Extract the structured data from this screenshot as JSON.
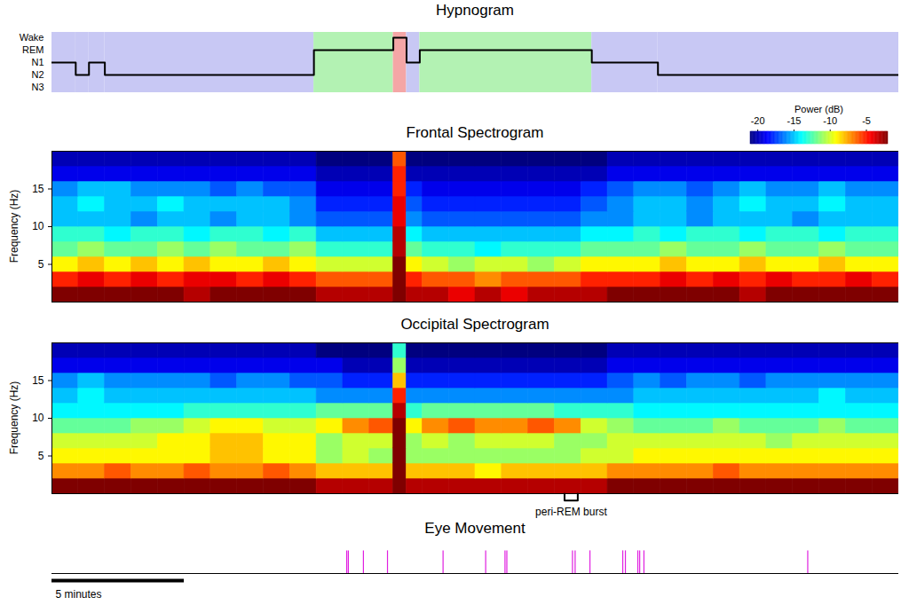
{
  "chart_data": [
    {
      "type": "step",
      "title": "Hypnogram",
      "categories": [
        "Wake",
        "REM",
        "N1",
        "N2",
        "N3"
      ],
      "segments": [
        {
          "stage": "N1",
          "start": 0,
          "end": 0.9,
          "color": "#c8c8f4"
        },
        {
          "stage": "N2",
          "start": 0.9,
          "end": 1.4,
          "color": "#c8c8f4"
        },
        {
          "stage": "N1",
          "start": 1.4,
          "end": 2.0,
          "color": "#c8c8f4"
        },
        {
          "stage": "N2",
          "start": 2.0,
          "end": 9.9,
          "color": "#c8c8f4"
        },
        {
          "stage": "REM",
          "start": 9.9,
          "end": 12.9,
          "color": "#b3f2b3"
        },
        {
          "stage": "Wake",
          "start": 12.9,
          "end": 13.4,
          "color": "#f4a6a6"
        },
        {
          "stage": "N1",
          "start": 13.4,
          "end": 13.9,
          "color": "#c8c8f4"
        },
        {
          "stage": "REM",
          "start": 13.9,
          "end": 20.4,
          "color": "#b3f2b3"
        },
        {
          "stage": "N1",
          "start": 20.4,
          "end": 22.9,
          "color": "#c8c8f4"
        },
        {
          "stage": "N2",
          "start": 22.9,
          "end": 32,
          "color": "#c8c8f4"
        }
      ],
      "color": "#000000",
      "xlim": [
        0,
        32
      ],
      "tick_labels": "y"
    },
    {
      "type": "heatmap",
      "title": "Frontal Spectrogram",
      "y_label": "Frequency (Hz)",
      "xlim": [
        0,
        32
      ],
      "ylim": [
        0,
        20
      ],
      "yticks": [
        5,
        10,
        15
      ],
      "tick_labels": "y",
      "colorbar": {
        "label": "Power (dB)",
        "range": [
          -21,
          -2
        ],
        "ticks": [
          -20,
          -15,
          -10,
          -5
        ]
      },
      "time_edges": [
        0,
        1,
        2,
        3,
        4,
        5,
        6,
        7,
        8,
        9,
        10,
        11,
        12,
        12.9,
        13.4,
        14,
        15,
        16,
        17,
        18,
        19,
        20,
        21,
        22,
        23,
        24,
        25,
        26,
        27,
        28,
        29,
        30,
        31,
        32
      ],
      "freq_edges": [
        0,
        2,
        4,
        6,
        8,
        10,
        12,
        14,
        16,
        18,
        20
      ],
      "power": [
        [
          -2,
          -2,
          -2,
          -2,
          -2,
          -3,
          -2,
          -2,
          -2,
          -2,
          -3,
          -3,
          -3,
          -2,
          -3,
          -3,
          -4,
          -3,
          -4,
          -3,
          -3,
          -3,
          -2,
          -2,
          -2,
          -2,
          -2,
          -3,
          -2,
          -2,
          -2,
          -2,
          -2
        ],
        [
          -5,
          -4,
          -5,
          -4,
          -5,
          -4,
          -4,
          -5,
          -4,
          -5,
          -6,
          -6,
          -6,
          -2,
          -5,
          -6,
          -6,
          -7,
          -6,
          -6,
          -6,
          -5,
          -5,
          -5,
          -4,
          -5,
          -4,
          -5,
          -4,
          -5,
          -5,
          -4,
          -5
        ],
        [
          -9,
          -8,
          -9,
          -8,
          -9,
          -8,
          -9,
          -9,
          -8,
          -9,
          -10,
          -10,
          -10,
          -2,
          -9,
          -10,
          -11,
          -10,
          -10,
          -11,
          -10,
          -9,
          -9,
          -9,
          -8,
          -9,
          -9,
          -8,
          -9,
          -9,
          -8,
          -9,
          -9
        ],
        [
          -12,
          -11,
          -12,
          -12,
          -11,
          -12,
          -11,
          -12,
          -12,
          -11,
          -13,
          -13,
          -13,
          -3,
          -12,
          -13,
          -13,
          -14,
          -13,
          -13,
          -13,
          -12,
          -12,
          -12,
          -11,
          -12,
          -12,
          -11,
          -12,
          -12,
          -11,
          -12,
          -12
        ],
        [
          -13,
          -13,
          -14,
          -13,
          -13,
          -14,
          -13,
          -13,
          -14,
          -13,
          -15,
          -15,
          -15,
          -3,
          -14,
          -15,
          -15,
          -15,
          -15,
          -15,
          -15,
          -14,
          -14,
          -13,
          -14,
          -13,
          -13,
          -14,
          -13,
          -13,
          -14,
          -13,
          -13
        ],
        [
          -15,
          -15,
          -15,
          -16,
          -15,
          -15,
          -16,
          -15,
          -15,
          -16,
          -17,
          -17,
          -17,
          -4,
          -16,
          -17,
          -17,
          -17,
          -17,
          -17,
          -17,
          -16,
          -16,
          -15,
          -15,
          -16,
          -15,
          -15,
          -15,
          -16,
          -15,
          -15,
          -15
        ],
        [
          -15,
          -14,
          -15,
          -15,
          -14,
          -15,
          -15,
          -15,
          -15,
          -16,
          -18,
          -18,
          -18,
          -4,
          -17,
          -18,
          -18,
          -18,
          -18,
          -18,
          -18,
          -17,
          -16,
          -15,
          -15,
          -16,
          -15,
          -14,
          -15,
          -15,
          -14,
          -15,
          -15
        ],
        [
          -16,
          -15,
          -15,
          -16,
          -16,
          -16,
          -17,
          -16,
          -17,
          -17,
          -19,
          -19,
          -19,
          -5,
          -18,
          -19,
          -19,
          -19,
          -19,
          -19,
          -19,
          -18,
          -17,
          -16,
          -16,
          -17,
          -16,
          -15,
          -16,
          -16,
          -15,
          -16,
          -16
        ],
        [
          -19,
          -19,
          -19,
          -19,
          -19,
          -19,
          -19,
          -19,
          -19,
          -19,
          -20,
          -20,
          -20,
          -5,
          -20,
          -20,
          -20,
          -20,
          -20,
          -20,
          -20,
          -20,
          -19,
          -19,
          -19,
          -19,
          -19,
          -19,
          -19,
          -19,
          -19,
          -19,
          -19
        ],
        [
          -20,
          -20,
          -20,
          -20,
          -20,
          -20,
          -20,
          -20,
          -20,
          -20,
          -21,
          -21,
          -21,
          -6,
          -21,
          -21,
          -21,
          -21,
          -21,
          -21,
          -21,
          -21,
          -20,
          -20,
          -20,
          -20,
          -20,
          -20,
          -20,
          -20,
          -20,
          -20,
          -20
        ]
      ]
    },
    {
      "type": "heatmap",
      "title": "Occipital Spectrogram",
      "y_label": "Frequency (Hz)",
      "xlim": [
        0,
        32
      ],
      "ylim": [
        0,
        20
      ],
      "yticks": [
        5,
        10,
        15
      ],
      "tick_labels": "y",
      "time_edges": [
        0,
        1,
        2,
        3,
        4,
        5,
        6,
        7,
        8,
        9,
        10,
        11,
        12,
        12.9,
        13.4,
        14,
        15,
        16,
        17,
        18,
        19,
        20,
        21,
        22,
        23,
        24,
        25,
        26,
        27,
        28,
        29,
        30,
        31,
        32
      ],
      "freq_edges": [
        0,
        2,
        4,
        6,
        8,
        10,
        12,
        14,
        16,
        18,
        20
      ],
      "power": [
        [
          -2,
          -2,
          -2,
          -2,
          -2,
          -2,
          -2,
          -2,
          -2,
          -2,
          -3,
          -3,
          -3,
          -2,
          -3,
          -3,
          -3,
          -3,
          -3,
          -3,
          -3,
          -3,
          -2,
          -2,
          -2,
          -2,
          -2,
          -2,
          -2,
          -2,
          -2,
          -2,
          -2
        ],
        [
          -7,
          -7,
          -6,
          -7,
          -7,
          -6,
          -7,
          -7,
          -6,
          -7,
          -8,
          -8,
          -8,
          -2,
          -8,
          -8,
          -8,
          -9,
          -8,
          -8,
          -8,
          -8,
          -7,
          -7,
          -7,
          -7,
          -6,
          -7,
          -7,
          -7,
          -7,
          -7,
          -7
        ],
        [
          -9,
          -9,
          -9,
          -9,
          -9,
          -9,
          -8,
          -8,
          -9,
          -9,
          -11,
          -10,
          -11,
          -2,
          -11,
          -11,
          -11,
          -11,
          -11,
          -11,
          -11,
          -10,
          -10,
          -9,
          -9,
          -9,
          -9,
          -9,
          -9,
          -9,
          -9,
          -9,
          -9
        ],
        [
          -10,
          -10,
          -10,
          -10,
          -9,
          -9,
          -8,
          -8,
          -9,
          -9,
          -11,
          -10,
          -10,
          -2,
          -11,
          -10,
          -11,
          -10,
          -10,
          -10,
          -11,
          -11,
          -10,
          -10,
          -10,
          -10,
          -10,
          -10,
          -11,
          -10,
          -10,
          -10,
          -10
        ],
        [
          -12,
          -12,
          -12,
          -11,
          -11,
          -10,
          -9,
          -9,
          -10,
          -10,
          -9,
          -7,
          -6,
          -2,
          -9,
          -7,
          -6,
          -7,
          -7,
          -6,
          -7,
          -10,
          -11,
          -12,
          -12,
          -12,
          -11,
          -12,
          -12,
          -12,
          -11,
          -12,
          -12
        ],
        [
          -14,
          -14,
          -14,
          -14,
          -14,
          -13,
          -13,
          -13,
          -13,
          -13,
          -12,
          -12,
          -12,
          -3,
          -13,
          -12,
          -12,
          -12,
          -12,
          -12,
          -13,
          -13,
          -13,
          -14,
          -14,
          -14,
          -14,
          -14,
          -14,
          -14,
          -14,
          -14,
          -14
        ],
        [
          -15,
          -14,
          -15,
          -15,
          -15,
          -15,
          -15,
          -15,
          -15,
          -15,
          -16,
          -16,
          -16,
          -5,
          -16,
          -16,
          -16,
          -16,
          -16,
          -16,
          -16,
          -16,
          -16,
          -15,
          -15,
          -15,
          -15,
          -15,
          -15,
          -15,
          -14,
          -15,
          -15
        ],
        [
          -16,
          -15,
          -16,
          -16,
          -16,
          -16,
          -17,
          -16,
          -16,
          -17,
          -17,
          -18,
          -18,
          -8,
          -18,
          -18,
          -18,
          -18,
          -18,
          -18,
          -18,
          -18,
          -17,
          -16,
          -17,
          -16,
          -16,
          -17,
          -16,
          -16,
          -16,
          -16,
          -16
        ],
        [
          -19,
          -19,
          -19,
          -19,
          -19,
          -19,
          -19,
          -19,
          -19,
          -19,
          -19,
          -20,
          -20,
          -11,
          -20,
          -20,
          -20,
          -20,
          -20,
          -20,
          -20,
          -20,
          -19,
          -19,
          -19,
          -19,
          -19,
          -19,
          -19,
          -19,
          -19,
          -19,
          -19
        ],
        [
          -20,
          -20,
          -20,
          -20,
          -20,
          -20,
          -20,
          -20,
          -20,
          -20,
          -21,
          -21,
          -21,
          -13,
          -21,
          -21,
          -21,
          -21,
          -21,
          -21,
          -21,
          -21,
          -20,
          -20,
          -20,
          -20,
          -20,
          -20,
          -20,
          -20,
          -20,
          -20,
          -20
        ]
      ],
      "annotations": [
        {
          "text": "peri-REM burst",
          "start": 19.37,
          "end": 19.87
        }
      ]
    },
    {
      "type": "event",
      "title": "Eye Movement",
      "xlim": [
        0,
        32
      ],
      "tick_labels": false,
      "x": [
        11.14,
        11.2,
        11.77,
        12.68,
        14.78,
        16.39,
        17.12,
        17.19,
        19.67,
        19.77,
        20.33,
        21.57,
        21.67,
        22.14,
        22.21,
        22.37,
        28.56
      ],
      "color": "#e020e0",
      "scale_bar": {
        "label": "5 minutes",
        "length": 5
      }
    }
  ]
}
